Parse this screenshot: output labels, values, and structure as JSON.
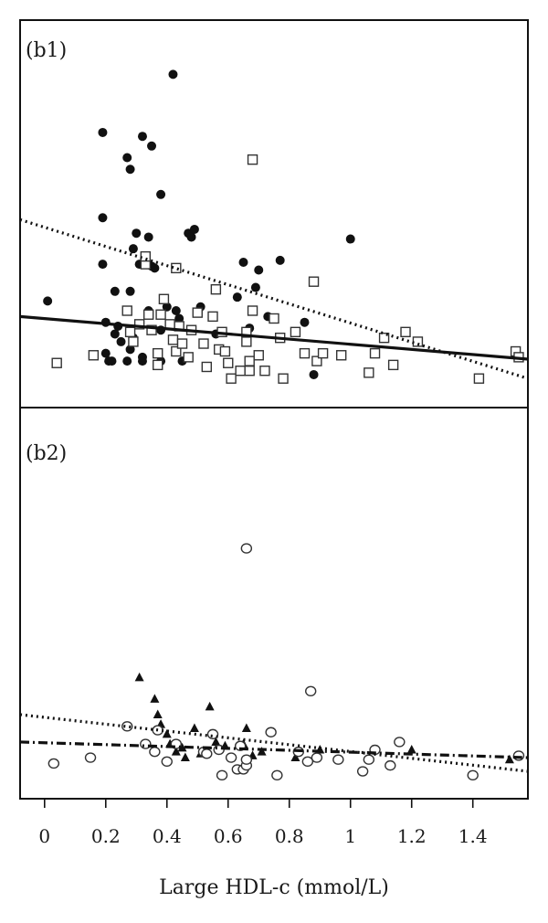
{
  "chart_data": [
    {
      "panel": "(b1)",
      "type": "scatter",
      "xlim": [
        -0.08,
        1.58
      ],
      "ylim": [
        0,
        100
      ],
      "grid": false,
      "series": [
        {
          "marker": "filled-circle",
          "points": [
            [
              0.01,
              27.5
            ],
            [
              0.19,
              71.0
            ],
            [
              0.19,
              49.0
            ],
            [
              0.19,
              37.0
            ],
            [
              0.2,
              22.0
            ],
            [
              0.2,
              14.0
            ],
            [
              0.21,
              12.0
            ],
            [
              0.22,
              12.0
            ],
            [
              0.23,
              30.0
            ],
            [
              0.23,
              19.0
            ],
            [
              0.24,
              21.0
            ],
            [
              0.25,
              17.0
            ],
            [
              0.27,
              64.5
            ],
            [
              0.27,
              12.0
            ],
            [
              0.28,
              15.0
            ],
            [
              0.28,
              30.0
            ],
            [
              0.28,
              61.5
            ],
            [
              0.29,
              41.0
            ],
            [
              0.29,
              18.0
            ],
            [
              0.3,
              45.0
            ],
            [
              0.31,
              37.0
            ],
            [
              0.32,
              12.0
            ],
            [
              0.32,
              13.0
            ],
            [
              0.32,
              70.0
            ],
            [
              0.34,
              25.0
            ],
            [
              0.34,
              44.0
            ],
            [
              0.35,
              67.5
            ],
            [
              0.35,
              36.5
            ],
            [
              0.36,
              36.0
            ],
            [
              0.38,
              55.0
            ],
            [
              0.38,
              20.0
            ],
            [
              0.38,
              12.0
            ],
            [
              0.4,
              26.0
            ],
            [
              0.42,
              86.0
            ],
            [
              0.43,
              25.0
            ],
            [
              0.44,
              23.0
            ],
            [
              0.45,
              12.0
            ],
            [
              0.47,
              45.0
            ],
            [
              0.48,
              44.0
            ],
            [
              0.49,
              46.0
            ],
            [
              0.51,
              26.0
            ],
            [
              0.56,
              19.0
            ],
            [
              0.63,
              28.5
            ],
            [
              0.65,
              37.5
            ],
            [
              0.67,
              20.5
            ],
            [
              0.69,
              31.0
            ],
            [
              0.7,
              35.5
            ],
            [
              0.73,
              23.5
            ],
            [
              0.77,
              38.0
            ],
            [
              0.85,
              22.0
            ],
            [
              0.88,
              8.5
            ],
            [
              1.0,
              43.5
            ]
          ]
        },
        {
          "marker": "open-square",
          "points": [
            [
              0.04,
              11.5
            ],
            [
              0.16,
              13.5
            ],
            [
              0.27,
              25.0
            ],
            [
              0.28,
              19.5
            ],
            [
              0.29,
              17.0
            ],
            [
              0.31,
              21.5
            ],
            [
              0.33,
              37.0
            ],
            [
              0.33,
              39.0
            ],
            [
              0.34,
              24.0
            ],
            [
              0.35,
              20.0
            ],
            [
              0.37,
              14.0
            ],
            [
              0.37,
              11.0
            ],
            [
              0.38,
              24.0
            ],
            [
              0.39,
              28.0
            ],
            [
              0.41,
              21.5
            ],
            [
              0.42,
              17.5
            ],
            [
              0.43,
              14.5
            ],
            [
              0.43,
              36.0
            ],
            [
              0.44,
              21.0
            ],
            [
              0.45,
              16.5
            ],
            [
              0.47,
              13.0
            ],
            [
              0.48,
              20.0
            ],
            [
              0.5,
              24.5
            ],
            [
              0.52,
              16.5
            ],
            [
              0.53,
              10.5
            ],
            [
              0.55,
              23.5
            ],
            [
              0.56,
              30.5
            ],
            [
              0.57,
              15.0
            ],
            [
              0.58,
              19.5
            ],
            [
              0.59,
              14.5
            ],
            [
              0.6,
              11.5
            ],
            [
              0.61,
              7.5
            ],
            [
              0.64,
              9.5
            ],
            [
              0.66,
              19.5
            ],
            [
              0.66,
              17.0
            ],
            [
              0.67,
              12.0
            ],
            [
              0.67,
              9.5
            ],
            [
              0.68,
              64.0
            ],
            [
              0.68,
              25.0
            ],
            [
              0.7,
              13.5
            ],
            [
              0.72,
              9.5
            ],
            [
              0.75,
              23.0
            ],
            [
              0.77,
              18.0
            ],
            [
              0.78,
              7.5
            ],
            [
              0.82,
              19.5
            ],
            [
              0.85,
              14.0
            ],
            [
              0.88,
              32.5
            ],
            [
              0.89,
              12.0
            ],
            [
              0.91,
              14.0
            ],
            [
              0.97,
              13.5
            ],
            [
              1.06,
              9.0
            ],
            [
              1.08,
              14.0
            ],
            [
              1.11,
              18.0
            ],
            [
              1.14,
              11.0
            ],
            [
              1.18,
              19.5
            ],
            [
              1.22,
              17.0
            ],
            [
              1.42,
              7.5
            ],
            [
              1.54,
              14.5
            ],
            [
              1.55,
              13.0
            ]
          ]
        }
      ],
      "trend_lines": [
        {
          "style": "dotted",
          "x": [
            -0.08,
            1.58
          ],
          "y": [
            48.5,
            7.5
          ]
        },
        {
          "style": "solid",
          "x": [
            -0.08,
            1.58
          ],
          "y": [
            23.5,
            12.5
          ]
        }
      ]
    },
    {
      "panel": "(b2)",
      "type": "scatter",
      "xlim": [
        -0.08,
        1.58
      ],
      "ylim": [
        0,
        100
      ],
      "grid": false,
      "xlabel": "Large HDL-c (mmol/L)",
      "xticks": [
        0,
        0.2,
        0.4,
        0.6,
        0.8,
        1,
        1.2,
        1.4
      ],
      "xtick_labels": [
        "0",
        "0.2",
        "0.4",
        "0.6",
        "0.8",
        "1",
        "1.2",
        "1.4"
      ],
      "series": [
        {
          "marker": "filled-triangle",
          "points": [
            [
              0.31,
              31.0
            ],
            [
              0.36,
              25.5
            ],
            [
              0.37,
              21.5
            ],
            [
              0.38,
              19.0
            ],
            [
              0.4,
              16.5
            ],
            [
              0.41,
              14.0
            ],
            [
              0.43,
              12.0
            ],
            [
              0.45,
              13.0
            ],
            [
              0.46,
              10.5
            ],
            [
              0.49,
              18.0
            ],
            [
              0.51,
              11.5
            ],
            [
              0.54,
              23.5
            ],
            [
              0.56,
              14.5
            ],
            [
              0.59,
              13.5
            ],
            [
              0.65,
              14.0
            ],
            [
              0.66,
              18.0
            ],
            [
              0.68,
              11.0
            ],
            [
              0.71,
              12.0
            ],
            [
              0.82,
              10.5
            ],
            [
              0.9,
              12.5
            ],
            [
              1.2,
              12.5
            ],
            [
              1.52,
              10.0
            ]
          ]
        },
        {
          "marker": "open-circle",
          "points": [
            [
              0.03,
              9.0
            ],
            [
              0.15,
              10.5
            ],
            [
              0.27,
              18.5
            ],
            [
              0.33,
              14.0
            ],
            [
              0.36,
              12.0
            ],
            [
              0.37,
              17.5
            ],
            [
              0.4,
              9.5
            ],
            [
              0.43,
              14.0
            ],
            [
              0.52,
              12.0
            ],
            [
              0.53,
              11.5
            ],
            [
              0.55,
              16.5
            ],
            [
              0.57,
              12.5
            ],
            [
              0.58,
              6.0
            ],
            [
              0.61,
              10.5
            ],
            [
              0.63,
              7.5
            ],
            [
              0.64,
              13.5
            ],
            [
              0.65,
              7.5
            ],
            [
              0.66,
              8.5
            ],
            [
              0.66,
              10.0
            ],
            [
              0.66,
              64.0
            ],
            [
              0.74,
              17.0
            ],
            [
              0.76,
              6.0
            ],
            [
              0.83,
              12.0
            ],
            [
              0.86,
              9.5
            ],
            [
              0.87,
              27.5
            ],
            [
              0.89,
              10.5
            ],
            [
              0.96,
              10.0
            ],
            [
              1.04,
              7.0
            ],
            [
              1.06,
              10.0
            ],
            [
              1.08,
              12.5
            ],
            [
              1.13,
              8.5
            ],
            [
              1.16,
              14.5
            ],
            [
              1.4,
              6.0
            ],
            [
              1.55,
              11.0
            ]
          ]
        }
      ],
      "trend_lines": [
        {
          "style": "dotted",
          "x": [
            -0.08,
            1.58
          ],
          "y": [
            21.5,
            7.0
          ]
        },
        {
          "style": "dash-dot",
          "x": [
            -0.08,
            1.58
          ],
          "y": [
            14.5,
            10.5
          ]
        }
      ]
    }
  ]
}
